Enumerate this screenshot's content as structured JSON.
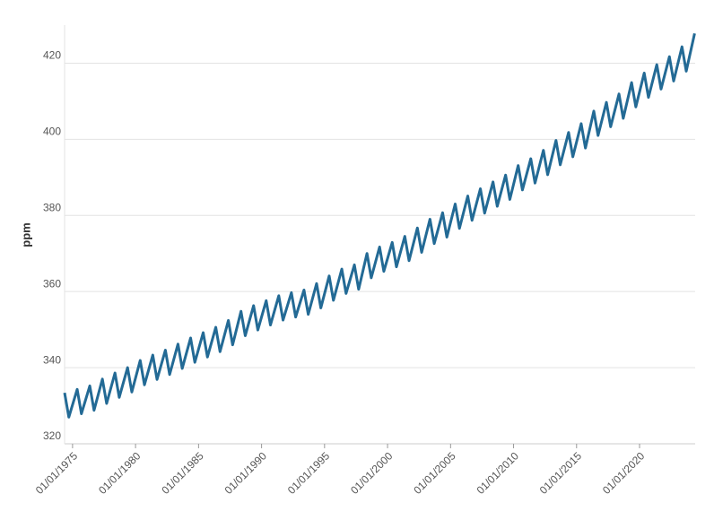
{
  "chart_data": {
    "type": "line",
    "y_label": "ppm",
    "color": "#236a95",
    "grid": true,
    "xlim": [
      "1974-05-15",
      "2024-05-31"
    ],
    "ylim": [
      320,
      430
    ],
    "yticks": [
      320,
      340,
      360,
      380,
      400,
      420
    ],
    "xticks": [
      {
        "value": "1975-01-01",
        "label": "01/01/1975"
      },
      {
        "value": "1980-01-01",
        "label": "01/01/1980"
      },
      {
        "value": "1985-01-01",
        "label": "01/01/1985"
      },
      {
        "value": "1990-01-01",
        "label": "01/01/1990"
      },
      {
        "value": "1995-01-01",
        "label": "01/01/1995"
      },
      {
        "value": "2000-01-01",
        "label": "01/01/2000"
      },
      {
        "value": "2005-01-01",
        "label": "01/01/2005"
      },
      {
        "value": "2010-01-01",
        "label": "01/01/2010"
      },
      {
        "value": "2015-01-01",
        "label": "01/01/2015"
      },
      {
        "value": "2020-01-01",
        "label": "01/01/2020"
      }
    ],
    "x": [
      "1974-05-15",
      "1974-09-15",
      "1975-05-15",
      "1975-09-15",
      "1976-05-15",
      "1976-09-15",
      "1977-05-15",
      "1977-09-15",
      "1978-05-15",
      "1978-09-15",
      "1979-05-15",
      "1979-09-15",
      "1980-05-15",
      "1980-09-15",
      "1981-05-15",
      "1981-09-15",
      "1982-05-15",
      "1982-09-15",
      "1983-05-15",
      "1983-09-15",
      "1984-05-15",
      "1984-09-15",
      "1985-05-15",
      "1985-09-15",
      "1986-05-15",
      "1986-09-15",
      "1987-05-15",
      "1987-09-15",
      "1988-05-15",
      "1988-09-15",
      "1989-05-15",
      "1989-09-15",
      "1990-05-15",
      "1990-09-15",
      "1991-05-15",
      "1991-09-15",
      "1992-05-15",
      "1992-09-15",
      "1993-05-15",
      "1993-09-15",
      "1994-05-15",
      "1994-09-15",
      "1995-05-15",
      "1995-09-15",
      "1996-05-15",
      "1996-09-15",
      "1997-05-15",
      "1997-09-15",
      "1998-05-15",
      "1998-09-15",
      "1999-05-15",
      "1999-09-15",
      "2000-05-15",
      "2000-09-15",
      "2001-05-15",
      "2001-09-15",
      "2002-05-15",
      "2002-09-15",
      "2003-05-15",
      "2003-09-15",
      "2004-05-15",
      "2004-09-15",
      "2005-05-15",
      "2005-09-15",
      "2006-05-15",
      "2006-09-15",
      "2007-05-15",
      "2007-09-15",
      "2008-05-15",
      "2008-09-15",
      "2009-05-15",
      "2009-09-15",
      "2010-05-15",
      "2010-09-15",
      "2011-05-15",
      "2011-09-15",
      "2012-05-15",
      "2012-09-15",
      "2013-05-15",
      "2013-09-15",
      "2014-05-15",
      "2014-09-15",
      "2015-05-15",
      "2015-09-15",
      "2016-05-15",
      "2016-09-15",
      "2017-05-15",
      "2017-09-15",
      "2018-05-15",
      "2018-09-15",
      "2019-05-15",
      "2019-09-15",
      "2020-05-15",
      "2020-09-15",
      "2021-05-15",
      "2021-09-15",
      "2022-05-15",
      "2022-09-15",
      "2023-05-15",
      "2023-09-15",
      "2024-05-15"
    ],
    "values": [
      333.4,
      327.0,
      334.3,
      327.9,
      335.2,
      328.8,
      337.0,
      330.6,
      338.6,
      332.2,
      340.0,
      333.6,
      341.9,
      335.5,
      343.3,
      336.9,
      344.6,
      338.2,
      346.2,
      339.8,
      347.8,
      341.4,
      349.2,
      342.8,
      350.6,
      344.2,
      352.4,
      346.0,
      354.8,
      348.4,
      356.3,
      349.9,
      357.6,
      351.2,
      358.9,
      352.5,
      359.7,
      353.3,
      360.4,
      354.0,
      362.1,
      355.7,
      364.1,
      357.7,
      365.9,
      359.5,
      367.0,
      360.6,
      370.0,
      363.6,
      371.7,
      365.3,
      372.9,
      366.5,
      374.5,
      368.1,
      376.7,
      370.3,
      379.0,
      372.6,
      380.7,
      374.3,
      383.0,
      376.6,
      385.1,
      378.7,
      387.0,
      380.6,
      388.8,
      382.4,
      390.6,
      384.2,
      393.1,
      386.7,
      394.9,
      388.5,
      397.1,
      390.7,
      399.7,
      393.3,
      401.8,
      395.4,
      404.1,
      397.7,
      407.4,
      401.0,
      409.7,
      403.3,
      411.9,
      405.5,
      414.9,
      408.5,
      417.4,
      411.0,
      419.6,
      413.2,
      421.7,
      415.3,
      424.3,
      417.9,
      427.8
    ]
  }
}
